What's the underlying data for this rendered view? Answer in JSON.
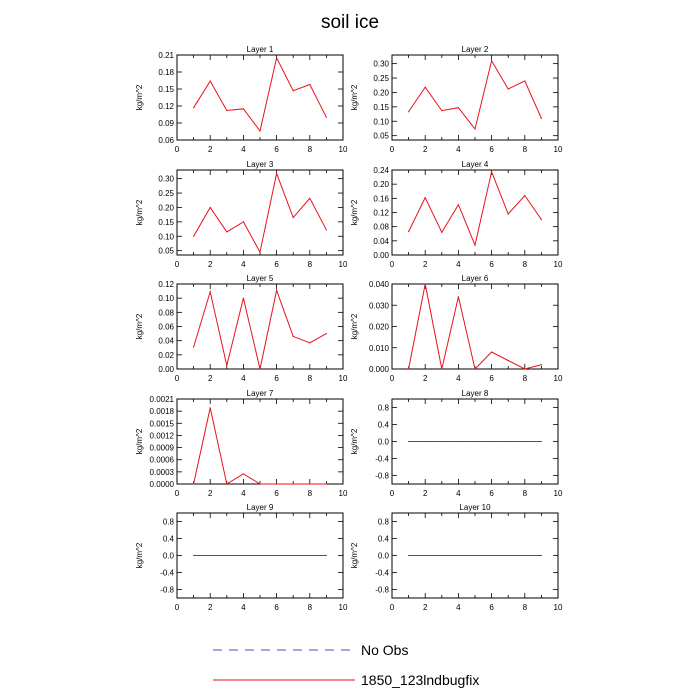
{
  "title": "soil ice",
  "legend": [
    {
      "label": "No Obs",
      "color": "#4a52c8",
      "dash": "dashed"
    },
    {
      "label": "1850_123lndbugfix",
      "color": "#e8121a",
      "dash": "solid"
    }
  ],
  "chart_data": [
    {
      "type": "line",
      "title": "Layer 1",
      "ylabel": "kg/m^2",
      "x": [
        1,
        2,
        3,
        4,
        5,
        6,
        7,
        8,
        9
      ],
      "series": [
        {
          "name": "1850_123lndbugfix",
          "values": [
            0.117,
            0.164,
            0.112,
            0.115,
            0.076,
            0.205,
            0.147,
            0.158,
            0.1
          ]
        }
      ],
      "xlim": [
        0,
        10
      ],
      "ylim": [
        0.06,
        0.21
      ],
      "xticks": [
        "0",
        "2",
        "4",
        "6",
        "8",
        "10"
      ],
      "yticks": [
        "0.06",
        "0.09",
        "0.12",
        "0.15",
        "0.18",
        "0.21"
      ]
    },
    {
      "type": "line",
      "title": "Layer 2",
      "ylabel": "kg/m^2",
      "x": [
        1,
        2,
        3,
        4,
        5,
        6,
        7,
        8,
        9
      ],
      "series": [
        {
          "name": "1850_123lndbugfix",
          "values": [
            0.133,
            0.218,
            0.137,
            0.147,
            0.073,
            0.31,
            0.212,
            0.24,
            0.11
          ]
        }
      ],
      "xlim": [
        0,
        10
      ],
      "ylim": [
        0.035,
        0.33
      ],
      "xticks": [
        "0",
        "2",
        "4",
        "6",
        "8",
        "10"
      ],
      "yticks": [
        "0.05",
        "0.10",
        "0.15",
        "0.20",
        "0.25",
        "0.30"
      ]
    },
    {
      "type": "line",
      "title": "Layer 3",
      "ylabel": "kg/m^2",
      "x": [
        1,
        2,
        3,
        4,
        5,
        6,
        7,
        8,
        9
      ],
      "series": [
        {
          "name": "1850_123lndbugfix",
          "values": [
            0.1,
            0.2,
            0.115,
            0.15,
            0.045,
            0.318,
            0.165,
            0.232,
            0.122
          ]
        }
      ],
      "xlim": [
        0,
        10
      ],
      "ylim": [
        0.035,
        0.33
      ],
      "xticks": [
        "0",
        "2",
        "4",
        "6",
        "8",
        "10"
      ],
      "yticks": [
        "0.05",
        "0.10",
        "0.15",
        "0.20",
        "0.25",
        "0.30"
      ]
    },
    {
      "type": "line",
      "title": "Layer 4",
      "ylabel": "kg/m^2",
      "x": [
        1,
        2,
        3,
        4,
        5,
        6,
        7,
        8,
        9
      ],
      "series": [
        {
          "name": "1850_123lndbugfix",
          "values": [
            0.066,
            0.162,
            0.064,
            0.142,
            0.028,
            0.235,
            0.116,
            0.168,
            0.1
          ]
        }
      ],
      "xlim": [
        0,
        10
      ],
      "ylim": [
        0.0,
        0.24
      ],
      "xticks": [
        "0",
        "2",
        "4",
        "6",
        "8",
        "10"
      ],
      "yticks": [
        "0.00",
        "0.04",
        "0.08",
        "0.12",
        "0.16",
        "0.20",
        "0.24"
      ]
    },
    {
      "type": "line",
      "title": "Layer 5",
      "ylabel": "kg/m^2",
      "x": [
        1,
        2,
        3,
        4,
        5,
        6,
        7,
        8,
        9
      ],
      "series": [
        {
          "name": "1850_123lndbugfix",
          "values": [
            0.031,
            0.109,
            0.005,
            0.1,
            0.0,
            0.111,
            0.046,
            0.037,
            0.05
          ]
        }
      ],
      "xlim": [
        0,
        10
      ],
      "ylim": [
        0.0,
        0.12
      ],
      "xticks": [
        "0",
        "2",
        "4",
        "6",
        "8",
        "10"
      ],
      "yticks": [
        "0.00",
        "0.02",
        "0.04",
        "0.06",
        "0.08",
        "0.10",
        "0.12"
      ]
    },
    {
      "type": "line",
      "title": "Layer 6",
      "ylabel": "kg/m^2",
      "x": [
        1,
        2,
        3,
        4,
        5,
        6,
        7,
        8,
        9
      ],
      "series": [
        {
          "name": "1850_123lndbugfix",
          "values": [
            0.0,
            0.04,
            0.0,
            0.034,
            0.0,
            0.008,
            0.004,
            0.0,
            0.002
          ]
        }
      ],
      "xlim": [
        0,
        10
      ],
      "ylim": [
        0.0,
        0.04
      ],
      "xticks": [
        "0",
        "2",
        "4",
        "6",
        "8",
        "10"
      ],
      "yticks": [
        "0.000",
        "0.010",
        "0.020",
        "0.030",
        "0.040"
      ]
    },
    {
      "type": "line",
      "title": "Layer 7",
      "ylabel": "kg/m^2",
      "x": [
        1,
        2,
        3,
        4,
        5,
        6,
        7,
        8,
        9
      ],
      "series": [
        {
          "name": "1850_123lndbugfix",
          "values": [
            0.0,
            0.00188,
            0.0,
            0.00025,
            0.0,
            0.0,
            0.0,
            0.0,
            0.0
          ]
        }
      ],
      "xlim": [
        0,
        10
      ],
      "ylim": [
        0.0,
        0.0021
      ],
      "xticks": [
        "0",
        "2",
        "4",
        "6",
        "8",
        "10"
      ],
      "yticks": [
        "0.0000",
        "0.0003",
        "0.0006",
        "0.0009",
        "0.0012",
        "0.0015",
        "0.0018",
        "0.0021"
      ]
    },
    {
      "type": "line",
      "title": "Layer 8",
      "ylabel": "kg/m^2",
      "x": [
        1,
        2,
        3,
        4,
        5,
        6,
        7,
        8,
        9
      ],
      "series": [
        {
          "name": "1850_123lndbugfix",
          "values": [
            0,
            0,
            0,
            0,
            0,
            0,
            0,
            0,
            0
          ]
        }
      ],
      "xlim": [
        0,
        10
      ],
      "ylim": [
        -1.0,
        1.0
      ],
      "xticks": [
        "0",
        "2",
        "4",
        "6",
        "8",
        "10"
      ],
      "yticks": [
        "-0.8",
        "-0.4",
        "0.0",
        "0.4",
        "0.8"
      ]
    },
    {
      "type": "line",
      "title": "Layer 9",
      "ylabel": "kg/m^2",
      "x": [
        1,
        2,
        3,
        4,
        5,
        6,
        7,
        8,
        9
      ],
      "series": [
        {
          "name": "1850_123lndbugfix",
          "values": [
            0,
            0,
            0,
            0,
            0,
            0,
            0,
            0,
            0
          ]
        }
      ],
      "xlim": [
        0,
        10
      ],
      "ylim": [
        -1.0,
        1.0
      ],
      "xticks": [
        "0",
        "2",
        "4",
        "6",
        "8",
        "10"
      ],
      "yticks": [
        "-0.8",
        "-0.4",
        "0.0",
        "0.4",
        "0.8"
      ]
    },
    {
      "type": "line",
      "title": "Layer 10",
      "ylabel": "kg/m^2",
      "x": [
        1,
        2,
        3,
        4,
        5,
        6,
        7,
        8,
        9
      ],
      "series": [
        {
          "name": "1850_123lndbugfix",
          "values": [
            0,
            0,
            0,
            0,
            0,
            0,
            0,
            0,
            0
          ]
        }
      ],
      "xlim": [
        0,
        10
      ],
      "ylim": [
        -1.0,
        1.0
      ],
      "xticks": [
        "0",
        "2",
        "4",
        "6",
        "8",
        "10"
      ],
      "yticks": [
        "-0.8",
        "-0.4",
        "0.0",
        "0.4",
        "0.8"
      ]
    }
  ]
}
